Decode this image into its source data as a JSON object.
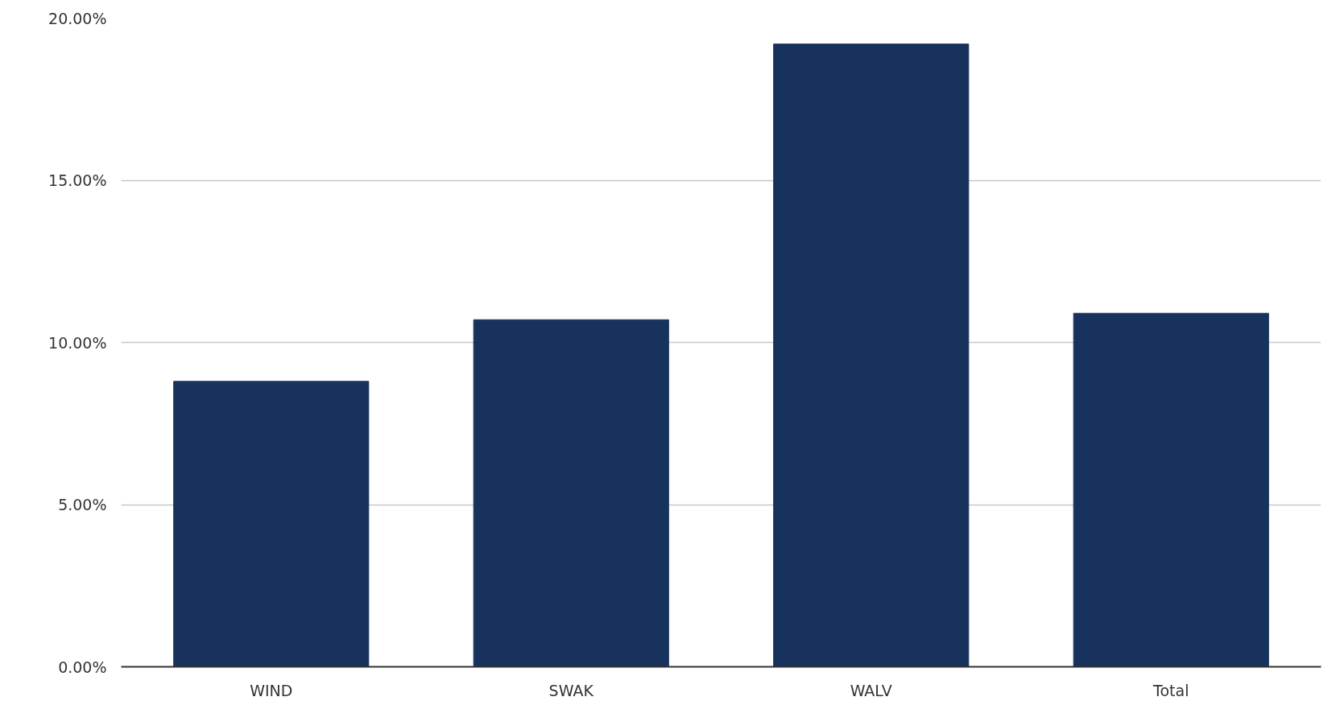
{
  "chart_data": {
    "type": "bar",
    "categories": [
      "WIND",
      "SWAK",
      "WALV",
      "Total"
    ],
    "values": [
      8.8,
      10.7,
      19.2,
      10.9
    ],
    "color": "#17325c",
    "ylim": [
      0,
      20
    ],
    "yticks": [
      {
        "value": 0,
        "label": "0.00%"
      },
      {
        "value": 5,
        "label": "5.00%"
      },
      {
        "value": 10,
        "label": "10.00%"
      },
      {
        "value": 15,
        "label": "15.00%"
      },
      {
        "value": 20,
        "label": "20.00%"
      }
    ],
    "grid": "y"
  }
}
